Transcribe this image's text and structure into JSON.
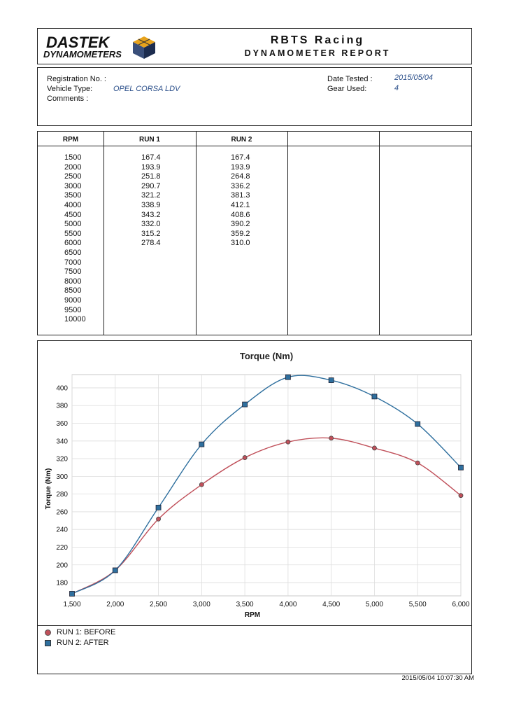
{
  "header": {
    "logo_line1": "DASTEK",
    "logo_line2": "DYNAMOMETERS",
    "title": "RBTS Racing",
    "subtitle": "DYNAMOMETER REPORT"
  },
  "info": {
    "registration_label": "Registration No. :",
    "registration_value": "",
    "vehicle_label": "Vehicle Type:",
    "vehicle_value": "OPEL CORSA LDV",
    "comments_label": "Comments :",
    "date_label": "Date Tested :",
    "date_value": "2015/05/04",
    "gear_label": "Gear Used:",
    "gear_value": "4"
  },
  "table": {
    "headers": [
      "RPM",
      "RUN 1",
      "RUN 2",
      "",
      ""
    ],
    "rpm": [
      "1500",
      "2000",
      "2500",
      "3000",
      "3500",
      "4000",
      "4500",
      "5000",
      "5500",
      "6000",
      "6500",
      "7000",
      "7500",
      "8000",
      "8500",
      "9000",
      "9500",
      "10000"
    ],
    "run1": [
      "167.4",
      "193.9",
      "251.8",
      "290.7",
      "321.2",
      "338.9",
      "343.2",
      "332.0",
      "315.2",
      "278.4"
    ],
    "run2": [
      "167.4",
      "193.9",
      "264.8",
      "336.2",
      "381.3",
      "412.1",
      "408.6",
      "390.2",
      "359.2",
      "310.0"
    ]
  },
  "chart_data": {
    "type": "line",
    "title": "Torque (Nm)",
    "xlabel": "RPM",
    "ylabel": "Torque (Nm)",
    "xlim": [
      1500,
      6000
    ],
    "ylim": [
      165,
      415
    ],
    "x": [
      1500,
      2000,
      2500,
      3000,
      3500,
      4000,
      4500,
      5000,
      5500,
      6000
    ],
    "x_tick_labels": [
      "1,500",
      "2,000",
      "2,500",
      "3,000",
      "3,500",
      "4,000",
      "4,500",
      "5,000",
      "5,500",
      "6,000"
    ],
    "y_ticks": [
      180,
      200,
      220,
      240,
      260,
      280,
      300,
      320,
      340,
      360,
      380,
      400
    ],
    "series": [
      {
        "name": "RUN 1: BEFORE",
        "color": "#c0505a",
        "marker": "circle",
        "values": [
          167.4,
          193.9,
          251.8,
          290.7,
          321.2,
          338.9,
          343.2,
          332.0,
          315.2,
          278.4
        ]
      },
      {
        "name": "RUN 2: AFTER",
        "color": "#2e6f9e",
        "marker": "square",
        "values": [
          167.4,
          193.9,
          264.8,
          336.2,
          381.3,
          412.1,
          408.6,
          390.2,
          359.2,
          310.0
        ]
      }
    ],
    "grid": true,
    "legend": "bottom-left"
  },
  "footer": {
    "timestamp": "2015/05/04 10:07:30 AM"
  }
}
